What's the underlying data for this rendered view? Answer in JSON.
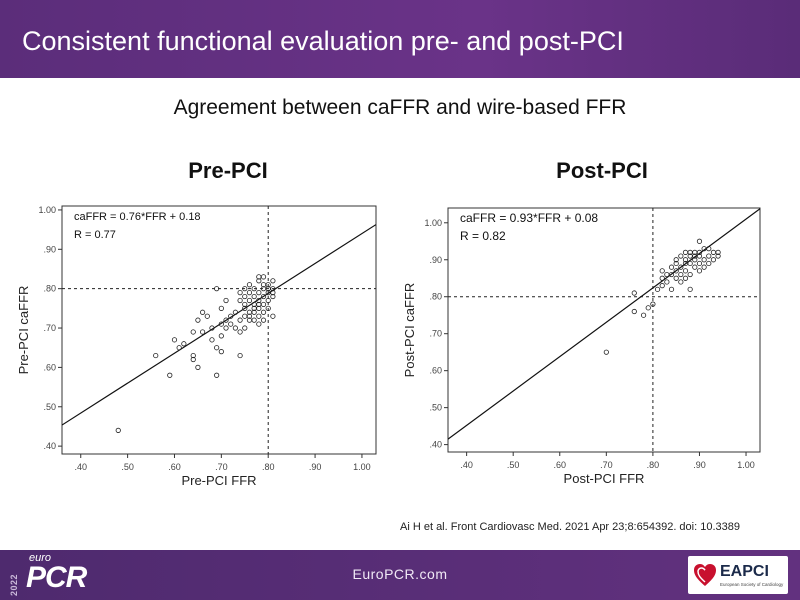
{
  "header": {
    "title": "Consistent functional evaluation pre- and post-PCI"
  },
  "subtitle": "Agreement between caFFR and wire-based FFR",
  "citation": "Ai H et al. Front Cardiovasc Med. 2021 Apr 23;8:654392.  doi: 10.3389",
  "footer": {
    "url": "EuroPCR.com",
    "logo_year": "2022",
    "logo_euro": "euro",
    "logo_pcr": "PCR",
    "eapci_label": "EAPCI",
    "eapci_sub": "European Society of Cardiology"
  },
  "colors": {
    "header_bg": "#5b2d7a",
    "footer_bg": "#4e2a6e"
  },
  "chart_data": [
    {
      "type": "scatter",
      "title": "Pre-PCI",
      "xlabel": "Pre-PCI FFR",
      "ylabel": "Pre-PCI caFFR",
      "xlim": [
        0.36,
        1.03
      ],
      "ylim": [
        0.38,
        1.01
      ],
      "xticks": [
        0.4,
        0.5,
        0.6,
        0.7,
        0.8,
        0.9,
        1.0
      ],
      "yticks": [
        0.4,
        0.5,
        0.6,
        0.7,
        0.8,
        0.9,
        1.0
      ],
      "xtick_labels": [
        ".40",
        ".50",
        ".60",
        ".70",
        ".80",
        ".90",
        "1.00"
      ],
      "ytick_labels": [
        ".40",
        ".50",
        ".60",
        ".70",
        ".80",
        ".90",
        "1.00"
      ],
      "annotations": [
        "caFFR = 0.76*FFR + 0.18",
        "R = 0.77"
      ],
      "regression": {
        "slope": 0.76,
        "intercept": 0.18
      },
      "threshold": {
        "x": 0.8,
        "y": 0.8
      },
      "points": [
        [
          0.48,
          0.44
        ],
        [
          0.56,
          0.63
        ],
        [
          0.59,
          0.58
        ],
        [
          0.6,
          0.67
        ],
        [
          0.61,
          0.65
        ],
        [
          0.62,
          0.66
        ],
        [
          0.64,
          0.63
        ],
        [
          0.64,
          0.62
        ],
        [
          0.64,
          0.69
        ],
        [
          0.65,
          0.72
        ],
        [
          0.65,
          0.6
        ],
        [
          0.66,
          0.74
        ],
        [
          0.66,
          0.69
        ],
        [
          0.67,
          0.73
        ],
        [
          0.68,
          0.67
        ],
        [
          0.68,
          0.7
        ],
        [
          0.69,
          0.65
        ],
        [
          0.69,
          0.58
        ],
        [
          0.69,
          0.8
        ],
        [
          0.7,
          0.68
        ],
        [
          0.7,
          0.71
        ],
        [
          0.7,
          0.75
        ],
        [
          0.7,
          0.64
        ],
        [
          0.71,
          0.7
        ],
        [
          0.71,
          0.72
        ],
        [
          0.71,
          0.77
        ],
        [
          0.72,
          0.71
        ],
        [
          0.72,
          0.73
        ],
        [
          0.73,
          0.7
        ],
        [
          0.73,
          0.74
        ],
        [
          0.74,
          0.72
        ],
        [
          0.74,
          0.69
        ],
        [
          0.74,
          0.77
        ],
        [
          0.74,
          0.63
        ],
        [
          0.74,
          0.79
        ],
        [
          0.75,
          0.7
        ],
        [
          0.75,
          0.75
        ],
        [
          0.75,
          0.78
        ],
        [
          0.75,
          0.73
        ],
        [
          0.75,
          0.8
        ],
        [
          0.75,
          0.76
        ],
        [
          0.76,
          0.74
        ],
        [
          0.76,
          0.72
        ],
        [
          0.76,
          0.77
        ],
        [
          0.76,
          0.79
        ],
        [
          0.76,
          0.81
        ],
        [
          0.76,
          0.73
        ],
        [
          0.77,
          0.75
        ],
        [
          0.77,
          0.78
        ],
        [
          0.77,
          0.8
        ],
        [
          0.77,
          0.72
        ],
        [
          0.77,
          0.76
        ],
        [
          0.77,
          0.74
        ],
        [
          0.78,
          0.77
        ],
        [
          0.78,
          0.79
        ],
        [
          0.78,
          0.75
        ],
        [
          0.78,
          0.82
        ],
        [
          0.78,
          0.73
        ],
        [
          0.78,
          0.83
        ],
        [
          0.78,
          0.71
        ],
        [
          0.78,
          0.76
        ],
        [
          0.79,
          0.78
        ],
        [
          0.79,
          0.8
        ],
        [
          0.79,
          0.76
        ],
        [
          0.79,
          0.74
        ],
        [
          0.79,
          0.72
        ],
        [
          0.79,
          0.81
        ],
        [
          0.79,
          0.83
        ],
        [
          0.8,
          0.79
        ],
        [
          0.8,
          0.77
        ],
        [
          0.8,
          0.8
        ],
        [
          0.8,
          0.75
        ],
        [
          0.8,
          0.81
        ],
        [
          0.81,
          0.8
        ],
        [
          0.81,
          0.73
        ],
        [
          0.81,
          0.78
        ],
        [
          0.81,
          0.79
        ],
        [
          0.81,
          0.82
        ]
      ]
    },
    {
      "type": "scatter",
      "title": "Post-PCI",
      "xlabel": "Post-PCI FFR",
      "ylabel": "Post-PCI caFFR",
      "xlim": [
        0.36,
        1.03
      ],
      "ylim": [
        0.38,
        1.04
      ],
      "xticks": [
        0.4,
        0.5,
        0.6,
        0.7,
        0.8,
        0.9,
        1.0
      ],
      "yticks": [
        0.4,
        0.5,
        0.6,
        0.7,
        0.8,
        0.9,
        1.0
      ],
      "xtick_labels": [
        ".40",
        ".50",
        ".60",
        ".70",
        ".80",
        ".90",
        "1.00"
      ],
      "ytick_labels": [
        ".40",
        ".50",
        ".60",
        ".70",
        ".80",
        ".90",
        "1.00"
      ],
      "annotations": [
        "caFFR = 0.93*FFR + 0.08",
        "R = 0.82"
      ],
      "regression": {
        "slope": 0.93,
        "intercept": 0.08
      },
      "threshold": {
        "x": 0.8,
        "y": 0.8
      },
      "points": [
        [
          0.7,
          0.65
        ],
        [
          0.76,
          0.81
        ],
        [
          0.76,
          0.76
        ],
        [
          0.78,
          0.75
        ],
        [
          0.79,
          0.77
        ],
        [
          0.8,
          0.78
        ],
        [
          0.81,
          0.82
        ],
        [
          0.82,
          0.83
        ],
        [
          0.82,
          0.85
        ],
        [
          0.82,
          0.87
        ],
        [
          0.83,
          0.84
        ],
        [
          0.83,
          0.86
        ],
        [
          0.84,
          0.88
        ],
        [
          0.84,
          0.82
        ],
        [
          0.84,
          0.86
        ],
        [
          0.85,
          0.89
        ],
        [
          0.85,
          0.87
        ],
        [
          0.85,
          0.85
        ],
        [
          0.85,
          0.9
        ],
        [
          0.86,
          0.88
        ],
        [
          0.86,
          0.91
        ],
        [
          0.86,
          0.86
        ],
        [
          0.86,
          0.84
        ],
        [
          0.87,
          0.9
        ],
        [
          0.87,
          0.92
        ],
        [
          0.87,
          0.87
        ],
        [
          0.87,
          0.89
        ],
        [
          0.87,
          0.85
        ],
        [
          0.88,
          0.91
        ],
        [
          0.88,
          0.89
        ],
        [
          0.88,
          0.86
        ],
        [
          0.88,
          0.92
        ],
        [
          0.88,
          0.82
        ],
        [
          0.89,
          0.9
        ],
        [
          0.89,
          0.88
        ],
        [
          0.89,
          0.92
        ],
        [
          0.89,
          0.91
        ],
        [
          0.9,
          0.89
        ],
        [
          0.9,
          0.91
        ],
        [
          0.9,
          0.95
        ],
        [
          0.9,
          0.87
        ],
        [
          0.9,
          0.92
        ],
        [
          0.91,
          0.9
        ],
        [
          0.91,
          0.93
        ],
        [
          0.91,
          0.88
        ],
        [
          0.92,
          0.91
        ],
        [
          0.92,
          0.89
        ],
        [
          0.92,
          0.93
        ],
        [
          0.93,
          0.92
        ],
        [
          0.93,
          0.9
        ],
        [
          0.94,
          0.91
        ],
        [
          0.94,
          0.92
        ]
      ]
    }
  ]
}
